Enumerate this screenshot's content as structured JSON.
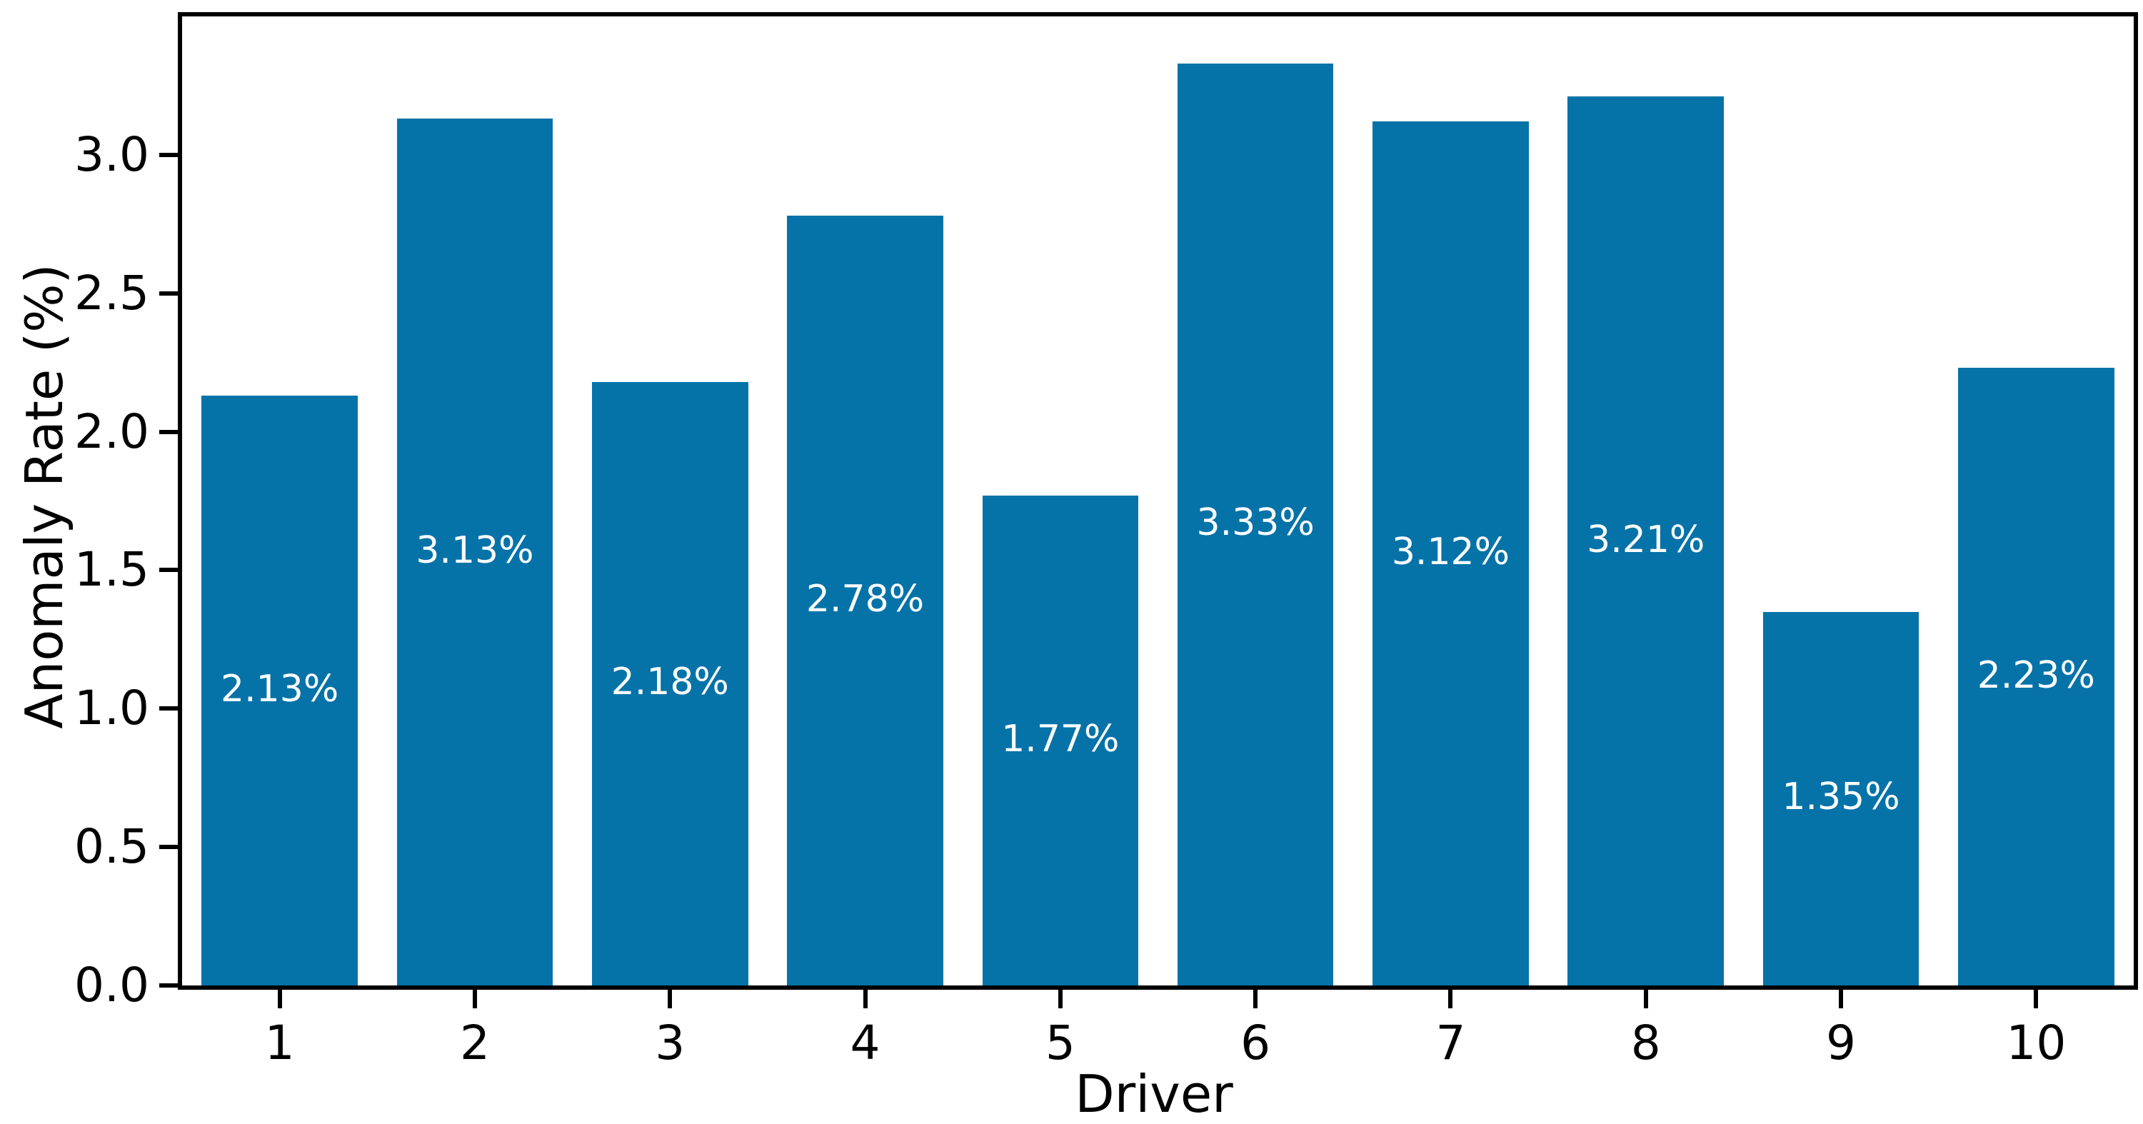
{
  "chart_data": {
    "type": "bar",
    "title": "",
    "xlabel": "Driver",
    "ylabel": "Anomaly Rate (%)",
    "categories": [
      "1",
      "2",
      "3",
      "4",
      "5",
      "6",
      "7",
      "8",
      "9",
      "10"
    ],
    "values": [
      2.13,
      3.13,
      2.18,
      2.78,
      1.77,
      3.33,
      3.12,
      3.21,
      1.35,
      2.23
    ],
    "bar_labels": [
      "2.13%",
      "3.13%",
      "2.18%",
      "2.78%",
      "1.77%",
      "3.33%",
      "3.12%",
      "3.21%",
      "1.35%",
      "2.23%"
    ],
    "yticks": [
      0.0,
      0.5,
      1.0,
      1.5,
      2.0,
      2.5,
      3.0
    ],
    "ytick_labels": [
      "0.0",
      "0.5",
      "1.0",
      "1.5",
      "2.0",
      "2.5",
      "3.0"
    ],
    "ylim": [
      0,
      3.5
    ],
    "grid": false,
    "legend": null,
    "bar_color": "#0673a8",
    "bar_label_color": "#ffffff",
    "axis_color": "#000000"
  }
}
